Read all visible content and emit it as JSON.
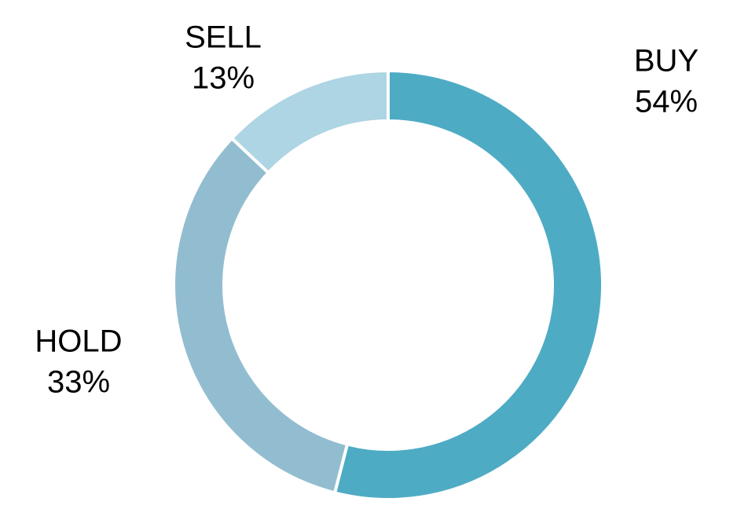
{
  "chart_data": {
    "type": "donut",
    "categories": [
      "BUY",
      "HOLD",
      "SELL"
    ],
    "values": [
      54,
      33,
      13
    ],
    "value_labels": [
      "54%",
      "33%",
      "13%"
    ],
    "colors": [
      "#4eabc4",
      "#92bdd0",
      "#aed5e3"
    ]
  }
}
